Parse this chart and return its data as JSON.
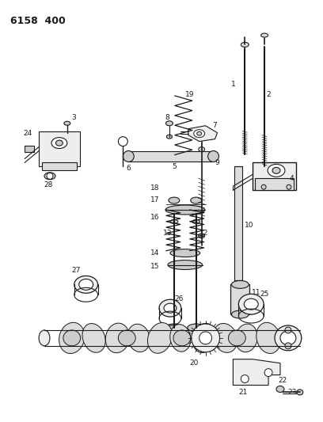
{
  "title": "6158 400",
  "bg_color": "#ffffff",
  "line_color": "#1a1a1a",
  "fig_width": 4.08,
  "fig_height": 5.33,
  "dpi": 100
}
